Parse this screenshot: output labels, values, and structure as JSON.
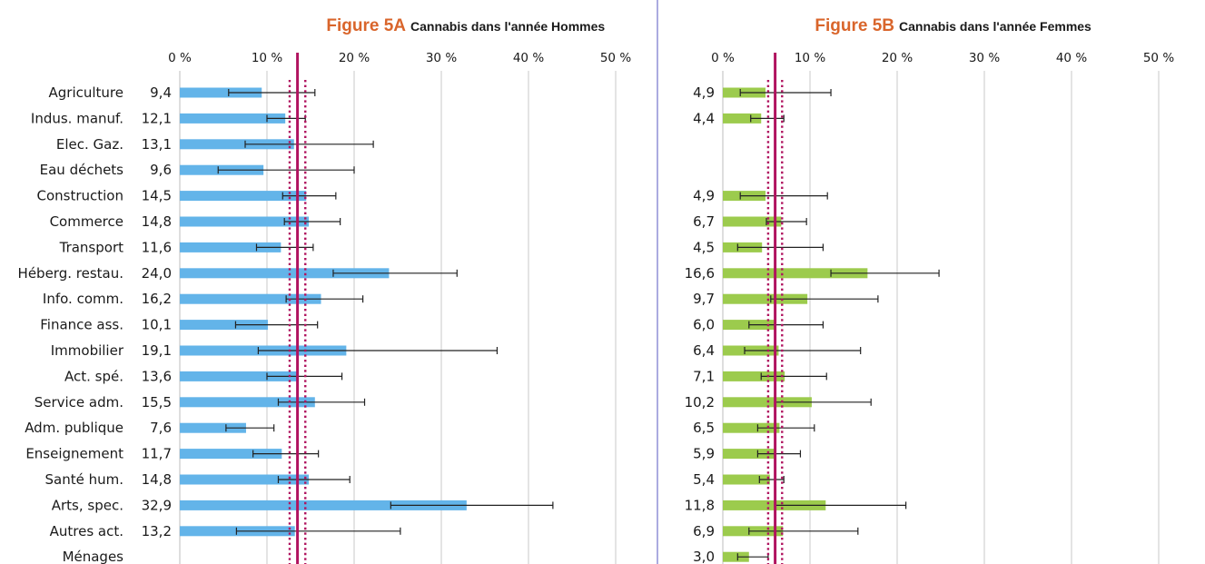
{
  "chart_data": [
    {
      "type": "bar",
      "figure_label": "Figure 5A",
      "title": "Cannabis dans l'année Hommes",
      "orientation": "horizontal",
      "xlim": [
        0,
        50
      ],
      "xticks": [
        0,
        10,
        20,
        30,
        40,
        50
      ],
      "xtick_labels": [
        "0 %",
        "10 %",
        "20 %",
        "30 %",
        "40 %",
        "50 %"
      ],
      "grid": true,
      "bar_color": "#63b4e9",
      "reference_line": {
        "value": 13.5,
        "ci": [
          12.6,
          14.4
        ],
        "color": "#b0135f"
      },
      "categories": [
        "Agriculture",
        "Indus. manuf.",
        "Elec. Gaz.",
        "Eau déchets",
        "Construction",
        "Commerce",
        "Transport",
        "Héberg. restau.",
        "Info. comm.",
        "Finance ass.",
        "Immobilier",
        "Act. spé.",
        "Service adm.",
        "Adm. publique",
        "Enseignement",
        "Santé hum.",
        "Arts, spec.",
        "Autres act.",
        "Ménages"
      ],
      "values": [
        9.4,
        12.1,
        13.1,
        9.6,
        14.5,
        14.8,
        11.6,
        24.0,
        16.2,
        10.1,
        19.1,
        13.6,
        15.5,
        7.6,
        11.7,
        14.8,
        32.9,
        13.2,
        null
      ],
      "value_labels": [
        "9,4",
        "12,1",
        "13,1",
        "9,6",
        "14,5",
        "14,8",
        "11,6",
        "24,0",
        "16,2",
        "10,1",
        "19,1",
        "13,6",
        "15,5",
        "7,6",
        "11,7",
        "14,8",
        "32,9",
        "13,2",
        ""
      ],
      "error_low": [
        5.6,
        10.0,
        7.5,
        4.4,
        11.8,
        12.0,
        8.8,
        17.6,
        12.2,
        6.4,
        9.0,
        10.0,
        11.3,
        5.3,
        8.4,
        11.3,
        24.2,
        6.5,
        null
      ],
      "error_high": [
        15.5,
        14.4,
        22.2,
        20.0,
        17.9,
        18.4,
        15.3,
        31.8,
        21.0,
        15.8,
        36.4,
        18.6,
        21.2,
        10.8,
        15.9,
        19.5,
        42.8,
        25.3,
        null
      ]
    },
    {
      "type": "bar",
      "figure_label": "Figure 5B",
      "title": "Cannabis dans l'année Femmes",
      "orientation": "horizontal",
      "xlim": [
        0,
        50
      ],
      "xticks": [
        0,
        10,
        20,
        30,
        40,
        50
      ],
      "xtick_labels": [
        "0 %",
        "10 %",
        "20 %",
        "30 %",
        "40 %",
        "50 %"
      ],
      "grid": true,
      "bar_color": "#9ccb4d",
      "reference_line": {
        "value": 6.0,
        "ci": [
          5.2,
          6.8
        ],
        "color": "#b0135f"
      },
      "categories": [
        "Agriculture",
        "Indus. manuf.",
        "Elec. Gaz.",
        "Eau déchets",
        "Construction",
        "Commerce",
        "Transport",
        "Héberg. restau.",
        "Info. comm.",
        "Finance ass.",
        "Immobilier",
        "Act. spé.",
        "Service adm.",
        "Adm. publique",
        "Enseignement",
        "Santé hum.",
        "Arts, spec.",
        "Autres act.",
        "Ménages"
      ],
      "values": [
        4.9,
        4.4,
        null,
        null,
        4.9,
        6.7,
        4.5,
        16.6,
        9.7,
        6.0,
        6.4,
        7.1,
        10.2,
        6.5,
        5.9,
        5.4,
        11.8,
        6.9,
        3.0
      ],
      "value_labels": [
        "4,9",
        "4,4",
        "",
        "",
        "4,9",
        "6,7",
        "4,5",
        "16,6",
        "9,7",
        "6,0",
        "6,4",
        "7,1",
        "10,2",
        "6,5",
        "5,9",
        "5,4",
        "11,8",
        "6,9",
        "3,0"
      ],
      "error_low": [
        2.0,
        3.2,
        null,
        null,
        2.0,
        5.0,
        1.7,
        12.4,
        5.5,
        3.0,
        2.5,
        4.4,
        6.0,
        4.0,
        4.0,
        4.2,
        6.0,
        3.0,
        1.7
      ],
      "error_high": [
        12.4,
        7.0,
        null,
        null,
        12.0,
        9.6,
        11.5,
        24.8,
        17.8,
        11.5,
        15.8,
        11.9,
        17.0,
        10.5,
        8.9,
        7.0,
        21.0,
        15.5,
        5.2
      ]
    }
  ]
}
